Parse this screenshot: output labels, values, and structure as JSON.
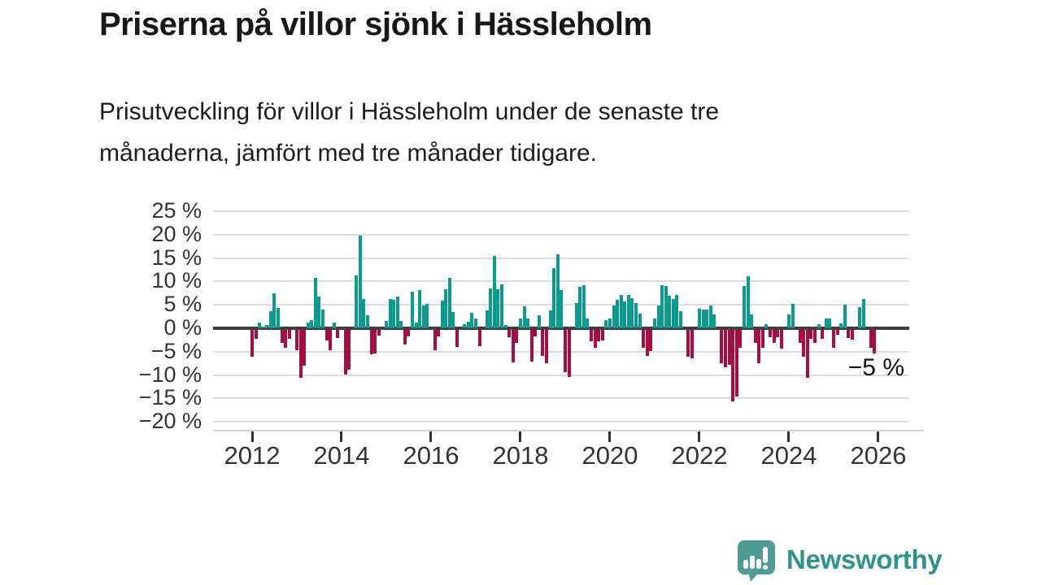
{
  "header": {
    "title": "Priserna på villor sjönk i Hässleholm",
    "subtitle_line1": "Prisutveckling för villor i Hässleholm under de senaste tre",
    "subtitle_line2": "månaderna, jämfört med tre månader tidigare."
  },
  "chart_data": {
    "type": "bar",
    "title": "",
    "xlabel": "",
    "ylabel": "",
    "unit": "%",
    "x_start": "2012-01",
    "x_end": "2025-12",
    "x_freq": "monthly",
    "ylim": [
      -20,
      25
    ],
    "grid": true,
    "y_ticks": [
      25,
      20,
      15,
      10,
      5,
      0,
      -5,
      -10,
      -15,
      -20
    ],
    "y_tick_labels": [
      "25 %",
      "20 %",
      "15 %",
      "10 %",
      "5 %",
      "0 %",
      "−5 %",
      "−10 %",
      "−15 %",
      "−20 %"
    ],
    "x_tick_labels": [
      "2012",
      "2014",
      "2016",
      "2018",
      "2020",
      "2022",
      "2024",
      "2026"
    ],
    "series": [
      {
        "name": "Prisutveckling villor Hässleholm, 3 mån jämfört med 3 mån tidigare",
        "values": [
          -5.7,
          -1.9,
          1.2,
          0.4,
          0.7,
          3.7,
          7.4,
          4.3,
          -2.7,
          -3.9,
          -1.9,
          0,
          -4.4,
          -10.2,
          -7.6,
          1.3,
          1.7,
          10.7,
          6.7,
          4.0,
          -2.3,
          -4.4,
          1.3,
          -1.7,
          0,
          -9.6,
          -8.5,
          0,
          11.3,
          19.8,
          6.2,
          2.7,
          -5.2,
          -5.1,
          -1.3,
          0,
          1.5,
          6.3,
          6.0,
          6.8,
          1.6,
          -3.2,
          -1.4,
          7.8,
          1.3,
          8.1,
          4.9,
          5.2,
          0,
          -4.3,
          -1.4,
          5.9,
          8.4,
          10.8,
          3.5,
          -3.6,
          0,
          0.8,
          1.4,
          3.3,
          2.0,
          -3.5,
          0,
          3.9,
          8.5,
          15.5,
          8.3,
          9.4,
          0.7,
          -1.5,
          -6.9,
          -2.8,
          2.0,
          4.7,
          2.0,
          -6.8,
          -1.4,
          2.7,
          -5.5,
          -7.2,
          3.9,
          12.9,
          15.8,
          8.1,
          -9.1,
          -10.0,
          0,
          5.4,
          8.9,
          9.2,
          2.0,
          -2.5,
          -3.9,
          -2.4,
          -2.3,
          1.8,
          2.1,
          4.8,
          6.0,
          7.1,
          5.7,
          7.2,
          6.5,
          5.4,
          3.1,
          -3.8,
          -5.6,
          -4.6,
          2.0,
          4.9,
          9.2,
          9.1,
          6.9,
          6.2,
          7.2,
          3.6,
          0,
          -5.7,
          -6.1,
          0,
          4.2,
          4.0,
          4.0,
          4.9,
          3.0,
          0,
          -7.1,
          -8.0,
          -7.4,
          -15.2,
          -14.2,
          -3.9,
          9.0,
          11.1,
          2.9,
          -2.8,
          -7.1,
          -3.9,
          0.9,
          -1.6,
          -2.7,
          -1.6,
          -4.0,
          0,
          2.9,
          5.2,
          0,
          -2.8,
          -5.7,
          -10.2,
          -1.9,
          -2.7,
          0.9,
          -1.9,
          2.1,
          2.1,
          -3.9,
          -1.0,
          1.0,
          5.0,
          -1.7,
          -2.1,
          0,
          4.5,
          6.2,
          0,
          -3.9,
          -5.0
        ]
      }
    ],
    "annotation": {
      "text": "−5 %",
      "value": -5
    },
    "colors": {
      "positive": "#0d9b8f",
      "negative": "#a60d43"
    },
    "legend": "none"
  },
  "footer": {
    "logo_text": "Newsworthy"
  }
}
